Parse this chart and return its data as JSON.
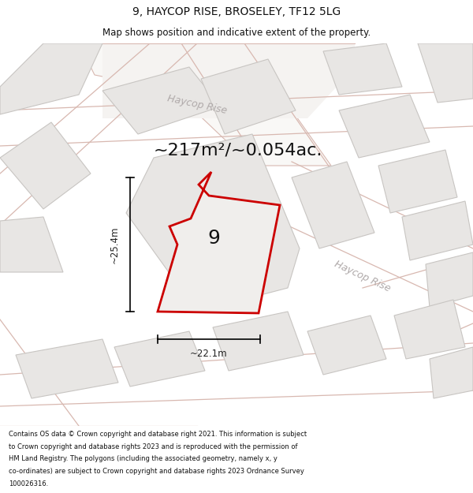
{
  "title": "9, HAYCOP RISE, BROSELEY, TF12 5LG",
  "subtitle": "Map shows position and indicative extent of the property.",
  "area_text": "~217m²/~0.054ac.",
  "dim_width": "~22.1m",
  "dim_height": "~25.4m",
  "label": "9",
  "footer_lines": [
    "Contains OS data © Crown copyright and database right 2021. This information is subject",
    "to Crown copyright and database rights 2023 and is reproduced with the permission of",
    "HM Land Registry. The polygons (including the associated geometry, namely x, y",
    "co-ordinates) are subject to Crown copyright and database rights 2023 Ordnance Survey",
    "100026316."
  ],
  "map_bg": "#f7f6f4",
  "bldg_fill": "#e8e6e4",
  "bldg_edge": "#c8c5c2",
  "road_fill": "#f0ecea",
  "road_edge": "#d8b8b0",
  "plot_fill": "#f0eeec",
  "plot_edge": "#cc0000",
  "road_label": "#b0aaaa",
  "dim_color": "#222222",
  "area_color": "#111111",
  "label_color": "#111111",
  "title_color": "#111111"
}
